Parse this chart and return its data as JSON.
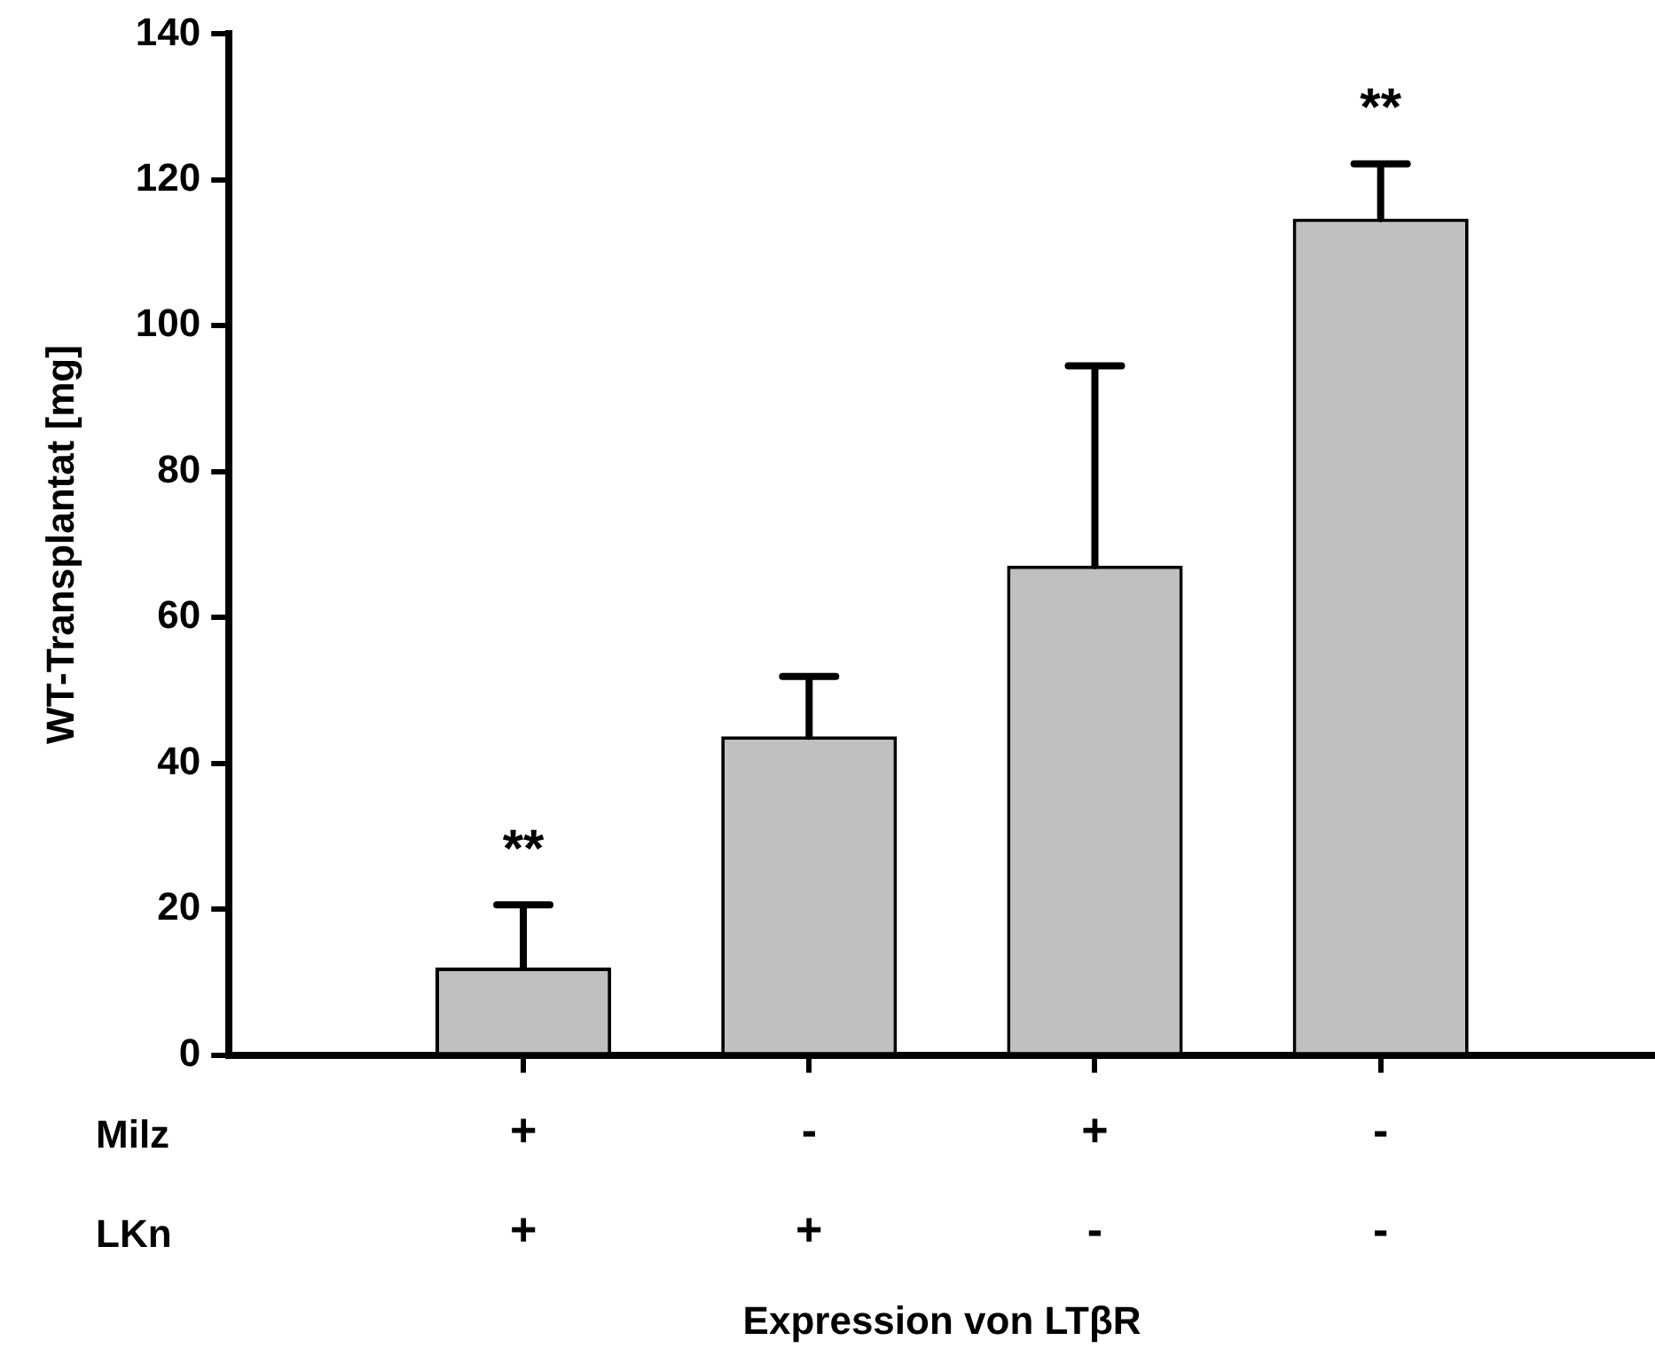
{
  "chart_data": {
    "type": "bar",
    "xlabel": "Expression von LTβR",
    "ylabel": "WT-Transplantat [mg]",
    "categories": [
      "+\n+",
      "-\n+",
      "+\n-",
      "-\n-"
    ],
    "values": [
      12,
      43.7,
      67.1,
      114.7
    ],
    "errors": [
      [
        12,
        20.6
      ],
      [
        43.7,
        51.9
      ],
      [
        67.1,
        94.5
      ],
      [
        114.7,
        122.2
      ]
    ],
    "color": "#c0c0c0",
    "ylim": [
      0,
      140
    ],
    "yticks": [
      0,
      20,
      40,
      60,
      80,
      100,
      120,
      140
    ],
    "grid": false,
    "legend": false,
    "annotations": [
      {
        "text": "**",
        "x": "+\n+",
        "y": 20.6
      },
      {
        "text": "**",
        "x": "-\n-",
        "y": 122.2
      },
      "Milz",
      "LKn"
    ]
  }
}
